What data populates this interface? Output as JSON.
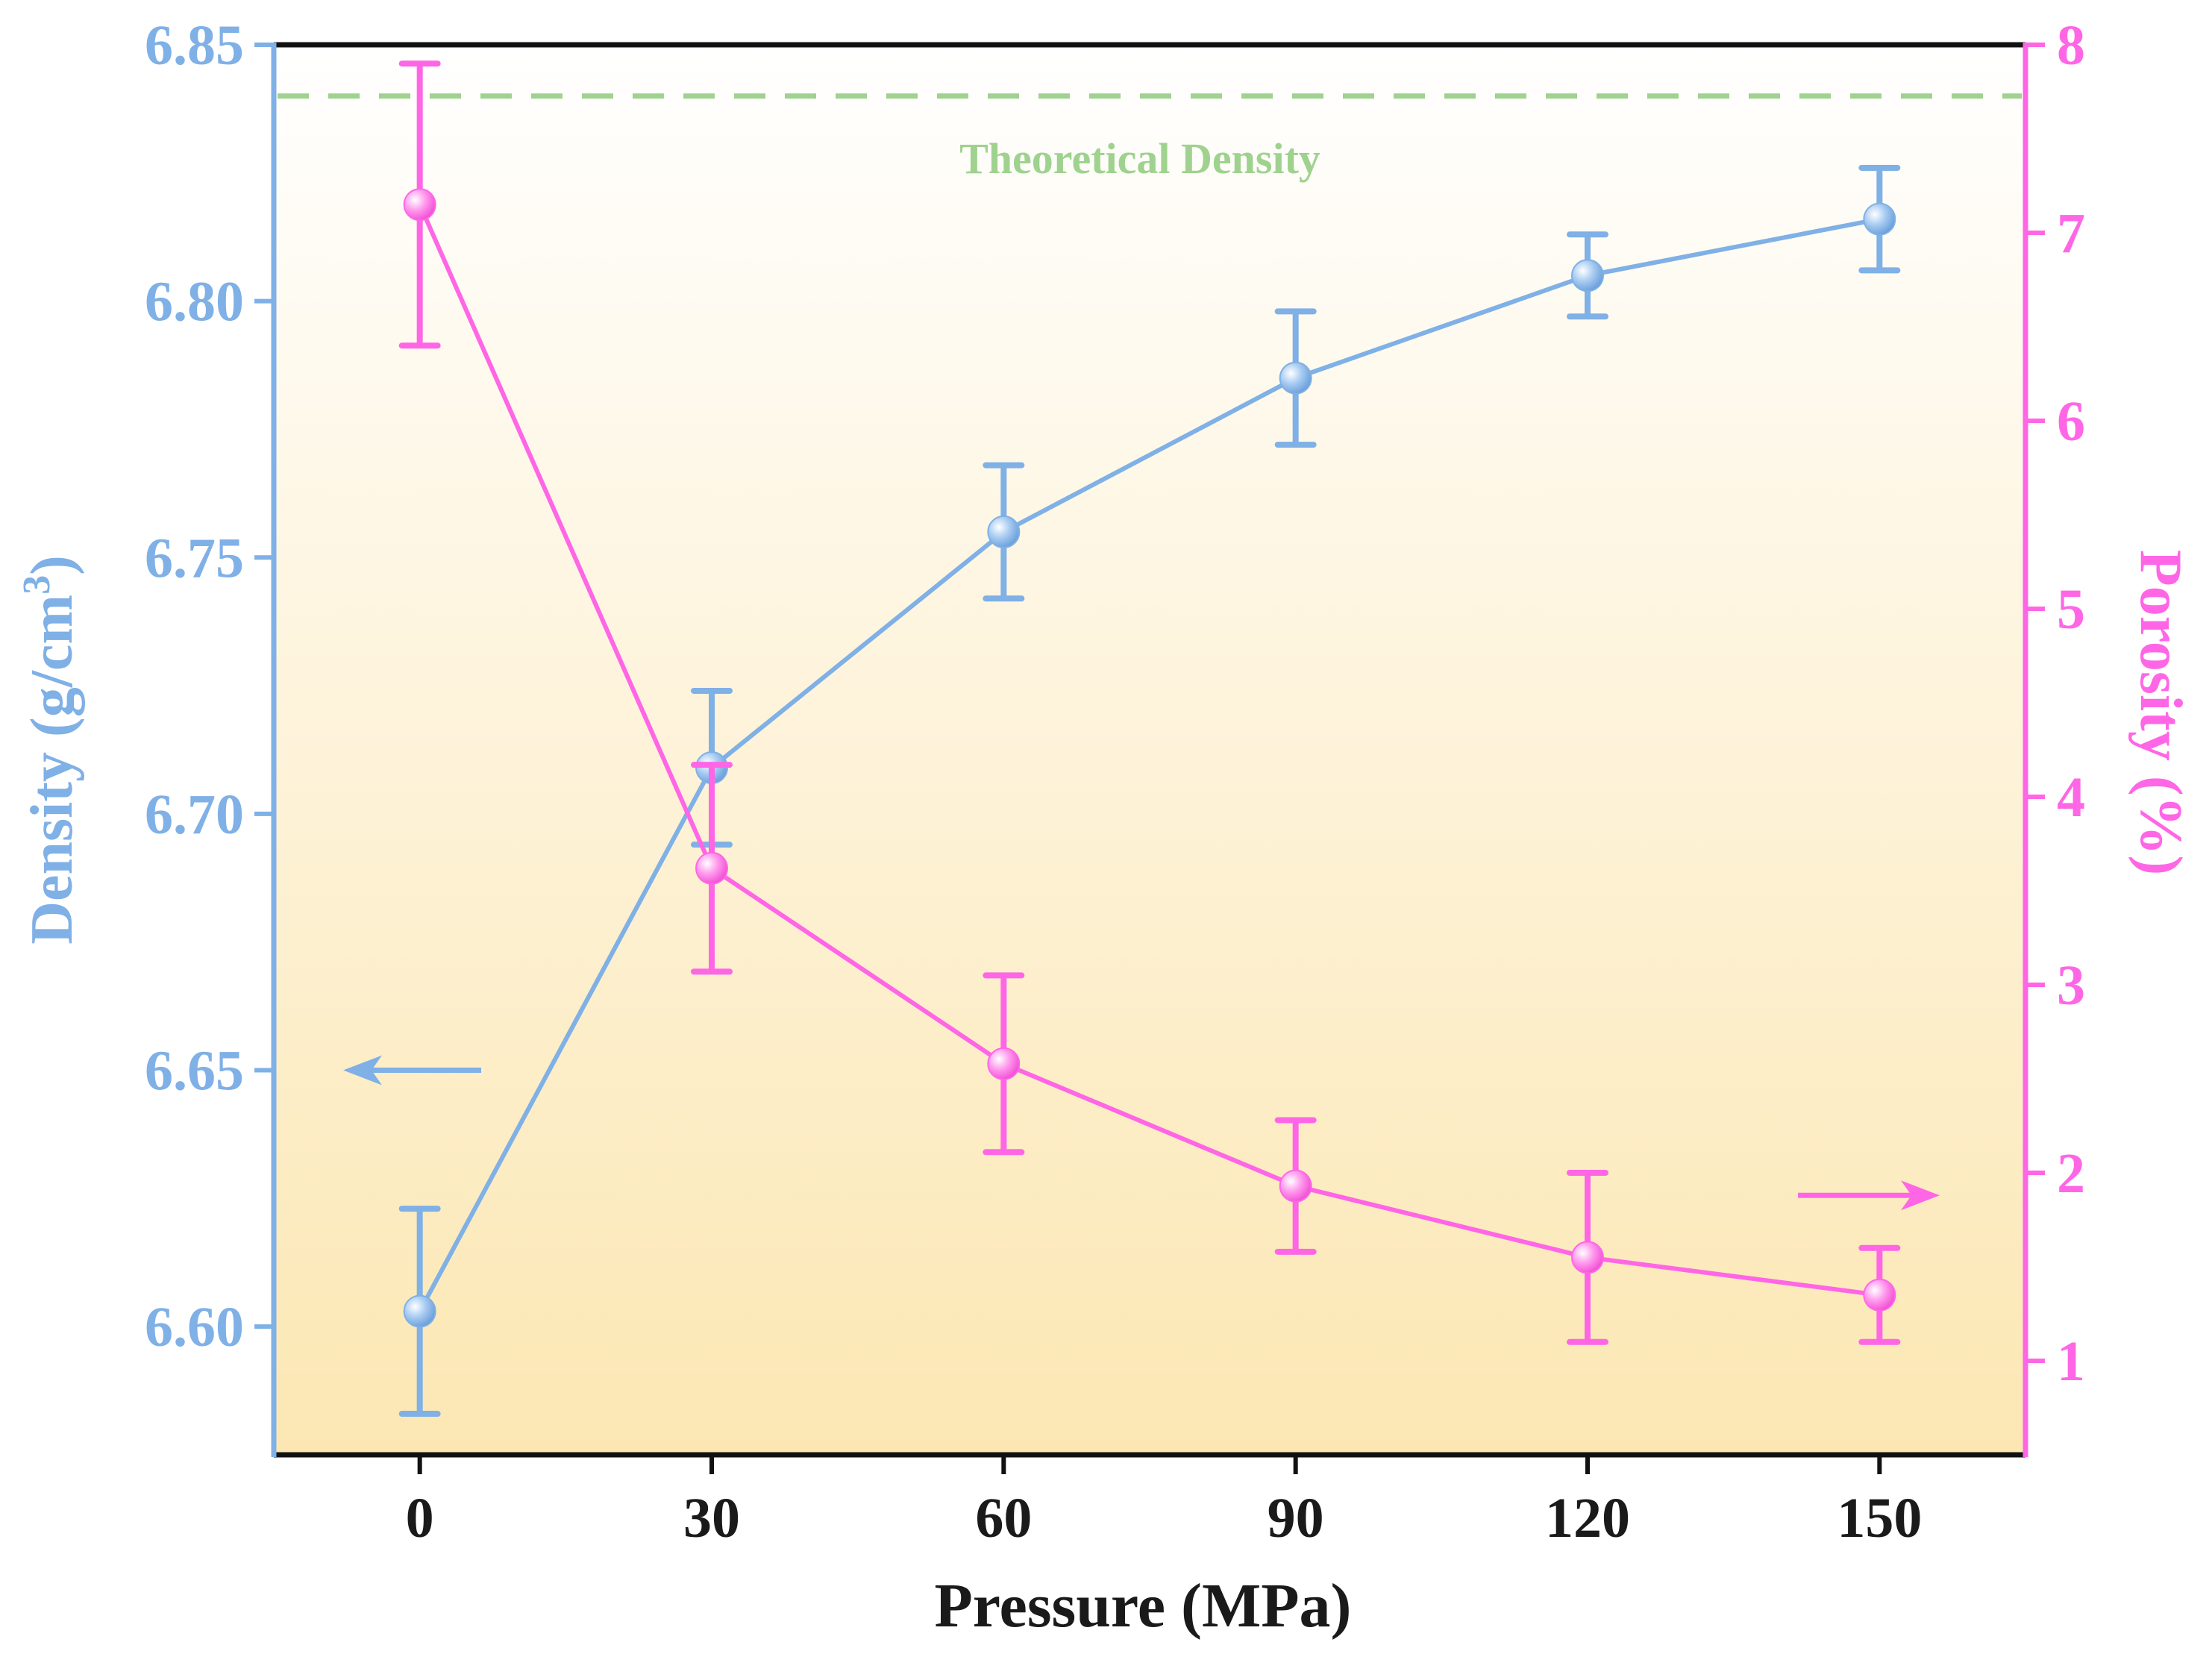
{
  "chart_data": {
    "type": "line",
    "x": [
      0,
      30,
      60,
      90,
      120,
      150
    ],
    "xlabel": "Pressure (MPa)",
    "xlim": [
      -15,
      165
    ],
    "xticks": [
      0,
      30,
      60,
      90,
      120,
      150
    ],
    "xtick_labels": [
      "0",
      "30",
      "60",
      "90",
      "120",
      "150"
    ],
    "grid": false,
    "background": "vertical gradient white (top) to light yellow (bottom)",
    "y_left": {
      "ylabel_text": "Density (g/cm",
      "ylabel_sup": "3",
      "ylabel_close": ")",
      "ylim": [
        6.575,
        6.85
      ],
      "yticks": [
        6.6,
        6.65,
        6.7,
        6.75,
        6.8,
        6.85
      ],
      "ytick_labels": [
        "6.60",
        "6.65",
        "6.70",
        "6.75",
        "6.80",
        "6.85"
      ],
      "color": "#7FB0E6"
    },
    "y_right": {
      "ylabel": "Porosity (%)",
      "ylim": [
        0.5,
        8
      ],
      "yticks": [
        1,
        2,
        3,
        4,
        5,
        6,
        7,
        8
      ],
      "ytick_labels": [
        "1",
        "2",
        "3",
        "4",
        "5",
        "6",
        "7",
        "8"
      ],
      "color": "#FF66E6"
    },
    "series": [
      {
        "axis": "left",
        "marker": "circle",
        "color": "#7FB0E6",
        "values": [
          6.603,
          6.709,
          6.755,
          6.785,
          6.805,
          6.816
        ],
        "errors": [
          0.02,
          0.015,
          0.013,
          0.013,
          0.008,
          0.01
        ]
      },
      {
        "axis": "right",
        "marker": "circle",
        "color": "#FF66E6",
        "values": [
          7.15,
          3.62,
          2.58,
          1.93,
          1.55,
          1.35
        ],
        "errors": [
          0.75,
          0.55,
          0.47,
          0.35,
          0.45,
          0.25
        ]
      }
    ],
    "reference_line": {
      "axis": "left",
      "value": 6.84,
      "style": "dashed",
      "color": "#9FD28F",
      "label": "Theoretical Density"
    },
    "arrows": [
      {
        "direction": "left",
        "color": "#7FB0E6",
        "meaning": "density axis"
      },
      {
        "direction": "right",
        "color": "#FF66E6",
        "meaning": "porosity axis"
      }
    ]
  }
}
